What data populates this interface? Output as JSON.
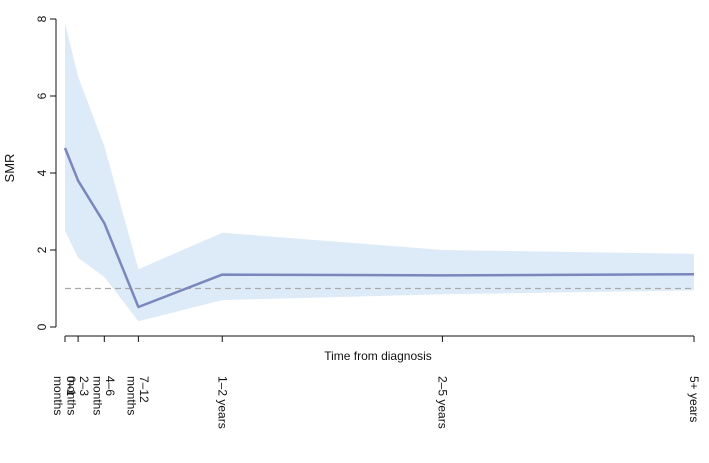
{
  "chart_data": {
    "type": "line",
    "title": "",
    "xlabel": "Time from diagnosis",
    "ylabel": "SMR",
    "ylim": [
      0,
      8
    ],
    "yticks": [
      0,
      2,
      4,
      6,
      8
    ],
    "x_scale": "months",
    "categories": [
      "0–1 months",
      "2–3 months",
      "4–6 months",
      "7–12 months",
      "1–2 years",
      "2–5 years",
      "5+ years"
    ],
    "x_months": [
      0,
      2.5,
      7.5,
      14,
      30,
      72,
      120
    ],
    "series": [
      {
        "values": [
          4.65,
          3.8,
          2.7,
          0.52,
          1.36,
          1.34,
          1.37
        ],
        "lower": [
          2.5,
          1.8,
          1.3,
          0.15,
          0.7,
          0.85,
          0.95
        ],
        "upper": [
          7.9,
          6.5,
          4.7,
          1.5,
          2.45,
          2.0,
          1.9
        ]
      }
    ],
    "reference_line": 1,
    "grid": false,
    "legend": "none"
  },
  "colors": {
    "line": "#7b86bd",
    "band": "#dcebf7",
    "reference": "#aaaaaa",
    "axis": "#111111"
  }
}
